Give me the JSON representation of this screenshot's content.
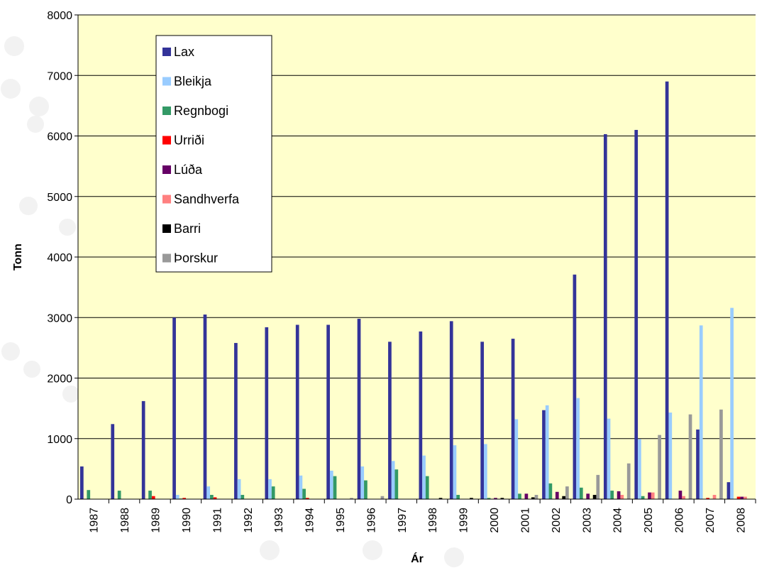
{
  "chart_data": {
    "type": "bar",
    "x_label": "Ár",
    "y_label": "Tonn",
    "categories": [
      "1987",
      "1988",
      "1989",
      "1990",
      "1991",
      "1992",
      "1993",
      "1994",
      "1995",
      "1996",
      "1997",
      "1998",
      "1999",
      "2000",
      "2001",
      "2002",
      "2003",
      "2004",
      "2005",
      "2006",
      "2007",
      "2008"
    ],
    "series": [
      {
        "name": "Lax",
        "color": "#333399",
        "values": [
          540,
          1240,
          1620,
          3000,
          3050,
          2580,
          2840,
          2880,
          2880,
          2980,
          2600,
          2770,
          2940,
          2600,
          2650,
          1470,
          3710,
          6030,
          6100,
          6900,
          1150,
          280
        ]
      },
      {
        "name": "Bleikja",
        "color": "#99ccff",
        "values": [
          0,
          0,
          0,
          70,
          210,
          330,
          330,
          390,
          470,
          540,
          630,
          720,
          890,
          910,
          1320,
          1550,
          1670,
          1330,
          990,
          1430,
          2870,
          3160
        ]
      },
      {
        "name": "Regnbogi",
        "color": "#339966",
        "values": [
          150,
          140,
          140,
          10,
          70,
          70,
          210,
          170,
          380,
          310,
          490,
          380,
          70,
          20,
          90,
          260,
          190,
          140,
          50,
          0,
          0,
          0
        ]
      },
      {
        "name": "Urriði",
        "color": "#ff0000",
        "values": [
          0,
          0,
          50,
          20,
          30,
          0,
          0,
          20,
          0,
          0,
          0,
          0,
          0,
          0,
          0,
          0,
          0,
          0,
          0,
          0,
          20,
          40
        ]
      },
      {
        "name": "Lúða",
        "color": "#660066",
        "values": [
          0,
          0,
          0,
          0,
          0,
          0,
          0,
          0,
          0,
          0,
          0,
          0,
          0,
          20,
          90,
          120,
          90,
          130,
          110,
          140,
          0,
          40
        ]
      },
      {
        "name": "Sandhverfa",
        "color": "#ff8080",
        "values": [
          0,
          0,
          0,
          0,
          0,
          0,
          0,
          0,
          0,
          0,
          0,
          0,
          0,
          0,
          0,
          0,
          0,
          70,
          110,
          50,
          70,
          40
        ]
      },
      {
        "name": "Barri",
        "color": "#000000",
        "values": [
          0,
          0,
          0,
          0,
          0,
          0,
          0,
          0,
          0,
          0,
          0,
          20,
          20,
          20,
          30,
          50,
          70,
          0,
          0,
          0,
          0,
          0
        ]
      },
      {
        "name": "Þorskur",
        "color": "#999999",
        "values": [
          0,
          0,
          0,
          0,
          0,
          0,
          0,
          0,
          20,
          50,
          0,
          0,
          0,
          0,
          70,
          210,
          400,
          590,
          1060,
          1400,
          1480,
          0
        ]
      }
    ],
    "ylim": [
      0,
      8000
    ],
    "yticks": [
      0,
      1000,
      2000,
      3000,
      4000,
      5000,
      6000,
      7000,
      8000
    ],
    "grid": true,
    "legend": "top-left",
    "plot_background": "#ffffcc"
  }
}
